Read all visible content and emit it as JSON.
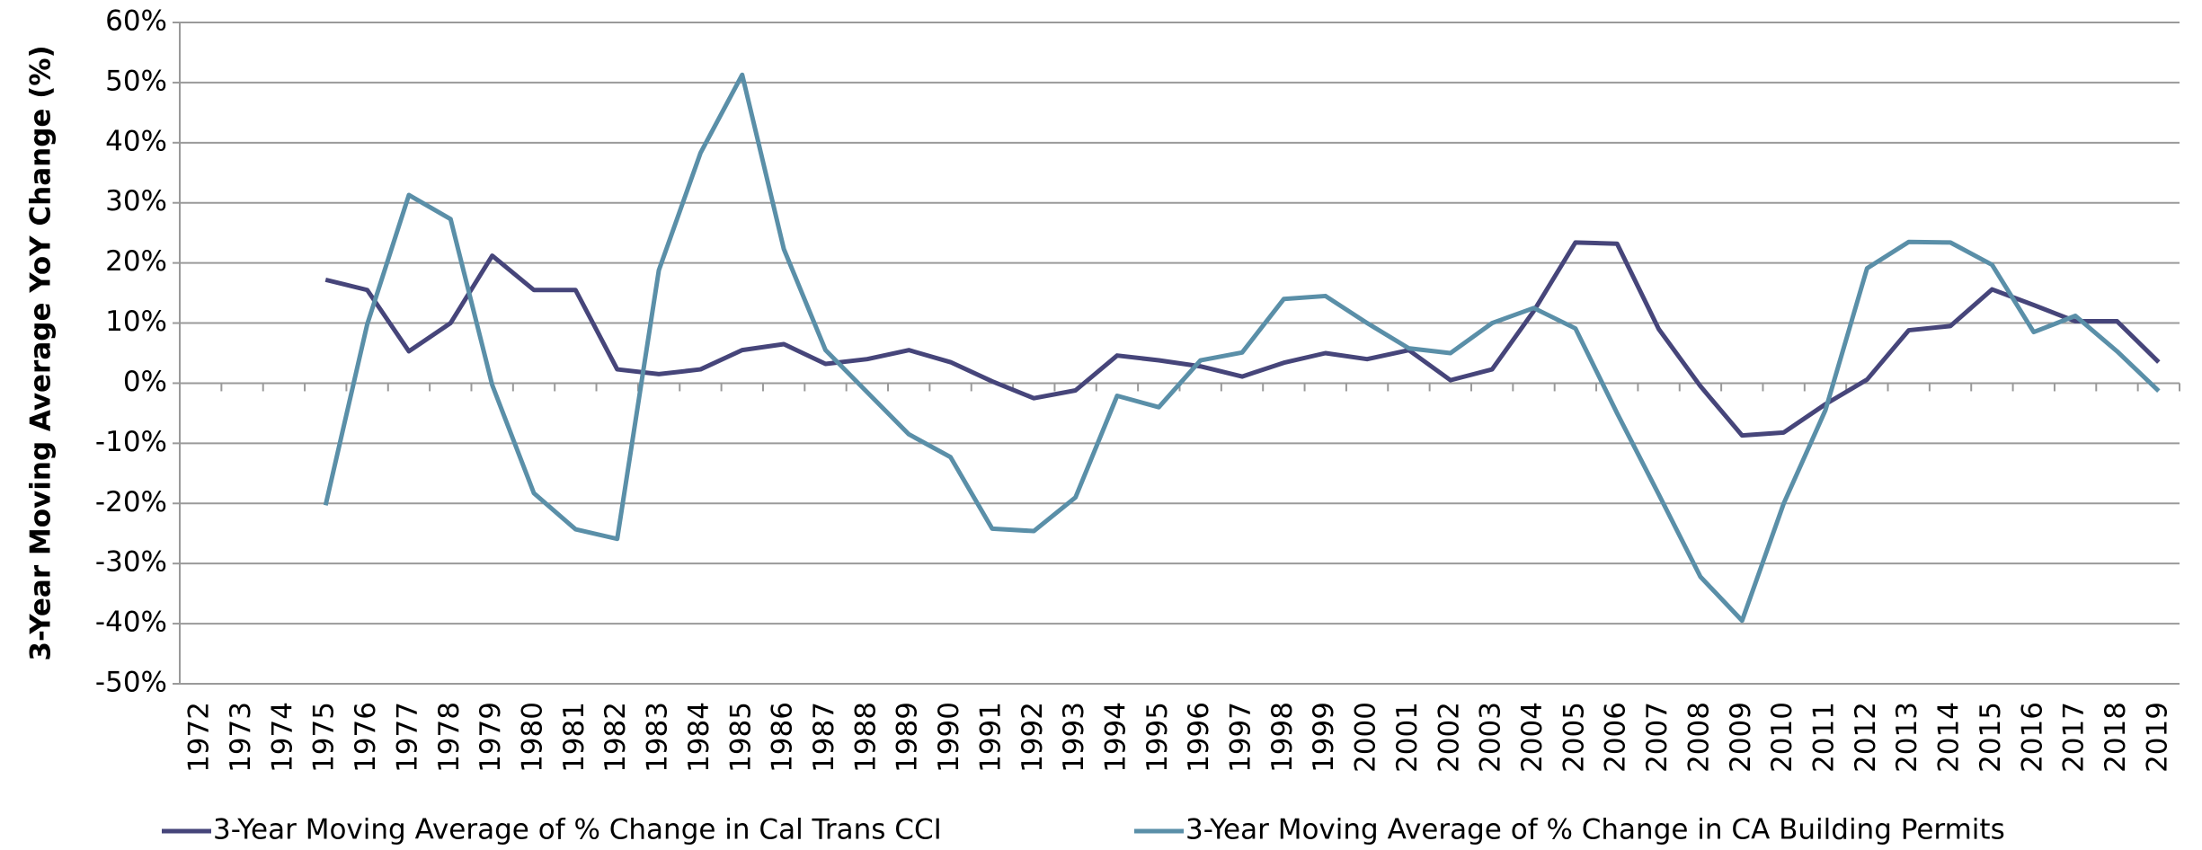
{
  "chart_data": {
    "type": "line",
    "y_label": "3-Year Moving Average YoY Change (%)",
    "categories": [
      "1972",
      "1973",
      "1974",
      "1975",
      "1976",
      "1977",
      "1978",
      "1979",
      "1980",
      "1981",
      "1982",
      "1983",
      "1984",
      "1985",
      "1986",
      "1987",
      "1988",
      "1989",
      "1990",
      "1991",
      "1992",
      "1993",
      "1994",
      "1995",
      "1996",
      "1997",
      "1998",
      "1999",
      "2000",
      "2001",
      "2002",
      "2003",
      "2004",
      "2005",
      "2006",
      "2007",
      "2008",
      "2009",
      "2010",
      "2011",
      "2012",
      "2013",
      "2014",
      "2015",
      "2016",
      "2017",
      "2018",
      "2019"
    ],
    "series": [
      {
        "name": "3-Year Moving Average of % Change in Cal Trans CCI",
        "color": "#46457a",
        "values": [
          null,
          null,
          null,
          17.2,
          15.5,
          5.3,
          10,
          21.2,
          15.5,
          15.5,
          2.3,
          1.5,
          2.3,
          5.5,
          6.5,
          3.2,
          4,
          5.5,
          3.5,
          0.3,
          -2.5,
          -1.2,
          4.6,
          3.8,
          2.8,
          1.1,
          3.4,
          5,
          4,
          5.5,
          0.5,
          2.3,
          12,
          23.4,
          23.2,
          9,
          -0.5,
          -8.7,
          -8.2,
          -3.5,
          0.6,
          8.8,
          9.5,
          15.6,
          13,
          10.3,
          10.3,
          3.5
        ]
      },
      {
        "name": "3-Year Moving Average of % Change in CA Building Permits",
        "color": "#5a8fa8",
        "values": [
          null,
          null,
          null,
          -20.3,
          9.8,
          31.3,
          27.3,
          -0.3,
          -18.3,
          -24.3,
          -25.9,
          18.8,
          38.3,
          51.3,
          22.3,
          5.5,
          -1.5,
          -8.5,
          -12.3,
          -24.2,
          -24.6,
          -19,
          -2.1,
          -4,
          3.8,
          5.1,
          14,
          14.5,
          10,
          5.8,
          5,
          10,
          12.5,
          9.1,
          -5,
          -18.5,
          -32.2,
          -39.5,
          -20,
          -4.5,
          19.1,
          23.5,
          23.4,
          19.7,
          8.5,
          11.2,
          5.3,
          -1.3
        ]
      }
    ],
    "ylim": [
      -50,
      60
    ],
    "yticks": [
      {
        "value": -50,
        "label": "-50%"
      },
      {
        "value": -40,
        "label": "-40%"
      },
      {
        "value": -30,
        "label": "-30%"
      },
      {
        "value": -20,
        "label": "-20%"
      },
      {
        "value": -10,
        "label": "-10%"
      },
      {
        "value": 0,
        "label": "0%"
      },
      {
        "value": 10,
        "label": "10%"
      },
      {
        "value": 20,
        "label": "20%"
      },
      {
        "value": 30,
        "label": "30%"
      },
      {
        "value": 40,
        "label": "40%"
      },
      {
        "value": 50,
        "label": "50%"
      },
      {
        "value": 60,
        "label": "60%"
      }
    ],
    "grid": true,
    "legend": "bottom"
  }
}
